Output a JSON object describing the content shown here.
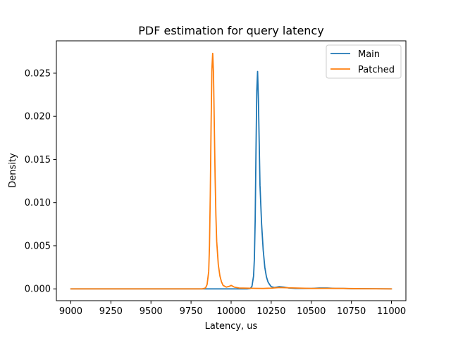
{
  "chart_data": {
    "type": "line",
    "title": "PDF estimation for query latency",
    "xlabel": "Latency, us",
    "ylabel": "Density",
    "xlim": [
      8910,
      11090
    ],
    "ylim": [
      -0.00137,
      0.02875
    ],
    "x_ticks": [
      9000,
      9250,
      9500,
      9750,
      10000,
      10250,
      10500,
      10750,
      11000
    ],
    "x_tick_labels": [
      "9000",
      "9250",
      "9500",
      "9750",
      "10000",
      "10250",
      "10500",
      "10750",
      "11000"
    ],
    "y_ticks": [
      0.0,
      0.005,
      0.01,
      0.015,
      0.02,
      0.025
    ],
    "y_tick_labels": [
      "0.000",
      "0.005",
      "0.010",
      "0.015",
      "0.020",
      "0.025"
    ],
    "grid": false,
    "legend_position": "top-right",
    "series": [
      {
        "name": "Main",
        "color": "#1f77b4",
        "x": [
          9000,
          10050,
          10100,
          10120,
          10130,
          10140,
          10145,
          10150,
          10155,
          10160,
          10165,
          10170,
          10175,
          10180,
          10190,
          10200,
          10210,
          10220,
          10230,
          10240,
          10250,
          10270,
          10300,
          10330,
          10360,
          10400,
          10500,
          10550,
          10600,
          10650,
          10700,
          10750,
          11000
        ],
        "y": [
          0.0,
          0.0,
          0.0,
          5e-05,
          0.0003,
          0.0015,
          0.0035,
          0.008,
          0.016,
          0.023,
          0.0252,
          0.022,
          0.017,
          0.012,
          0.0075,
          0.0045,
          0.0025,
          0.0014,
          0.0008,
          0.0005,
          0.00025,
          0.00015,
          0.00025,
          0.0002,
          0.0001,
          5e-05,
          5e-05,
          0.0001,
          0.0001,
          5e-05,
          5e-05,
          2e-05,
          0.0
        ]
      },
      {
        "name": "Patched",
        "color": "#ff7f0e",
        "x": [
          9000,
          9820,
          9840,
          9850,
          9860,
          9865,
          9870,
          9875,
          9880,
          9885,
          9890,
          9895,
          9900,
          9905,
          9910,
          9920,
          9930,
          9940,
          9950,
          9960,
          9970,
          9990,
          10000,
          10020,
          10050,
          10100,
          10150,
          10200,
          10250,
          10300,
          10400,
          10500,
          10600,
          10700,
          10800,
          11000
        ],
        "y": [
          0.0,
          0.0,
          0.0001,
          0.0005,
          0.002,
          0.005,
          0.011,
          0.019,
          0.0255,
          0.0273,
          0.025,
          0.019,
          0.013,
          0.0085,
          0.0055,
          0.0028,
          0.0015,
          0.0008,
          0.0004,
          0.0003,
          0.0002,
          0.0003,
          0.0004,
          0.0002,
          0.0001,
          8e-05,
          6e-05,
          5e-05,
          8e-05,
          0.00015,
          0.0001,
          5e-05,
          6e-05,
          5e-05,
          2e-05,
          0.0
        ]
      }
    ]
  }
}
